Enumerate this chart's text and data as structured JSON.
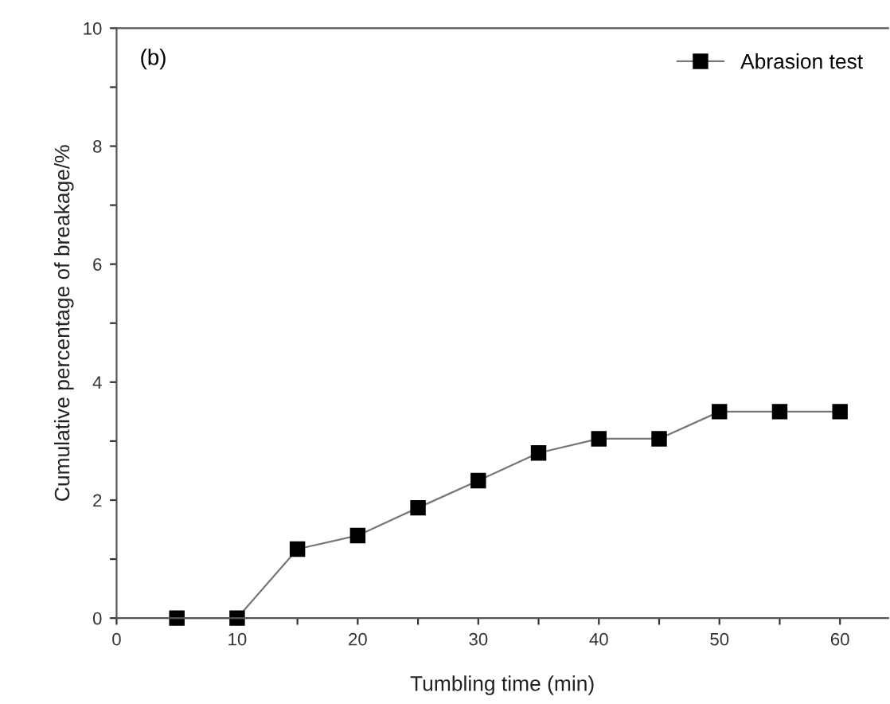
{
  "chart_data": {
    "type": "line",
    "xlabel": "Tumbling time (min)",
    "ylabel": "Cumulative percentage of breakage/%",
    "x": [
      5,
      10,
      15,
      20,
      25,
      30,
      35,
      40,
      45,
      50,
      55,
      60
    ],
    "series": [
      {
        "name": "Abrasion test",
        "color": "#000000",
        "values": [
          0,
          0,
          1.17,
          1.4,
          1.87,
          2.33,
          2.8,
          3.04,
          3.04,
          3.5,
          3.5,
          3.5
        ]
      }
    ],
    "xlim": [
      0,
      64
    ],
    "xticks": [
      0,
      {
        "value": 5,
        "label": null
      },
      10,
      {
        "value": 15,
        "label": null
      },
      20,
      {
        "value": 25,
        "label": null
      },
      30,
      {
        "value": 35,
        "label": null
      },
      40,
      {
        "value": 45,
        "label": null
      },
      50,
      {
        "value": 55,
        "label": null
      },
      60
    ],
    "ylim": [
      0,
      10
    ],
    "yticks": [
      0,
      {
        "value": 1,
        "label": null
      },
      2,
      {
        "value": 3,
        "label": null
      },
      4,
      {
        "value": 5,
        "label": null
      },
      6,
      {
        "value": 7,
        "label": null
      },
      8,
      {
        "value": 9,
        "label": null
      },
      10
    ],
    "annotations": [
      "(b)"
    ],
    "marker": "square",
    "line_style": "solid",
    "legend": "top right",
    "grid": false
  }
}
